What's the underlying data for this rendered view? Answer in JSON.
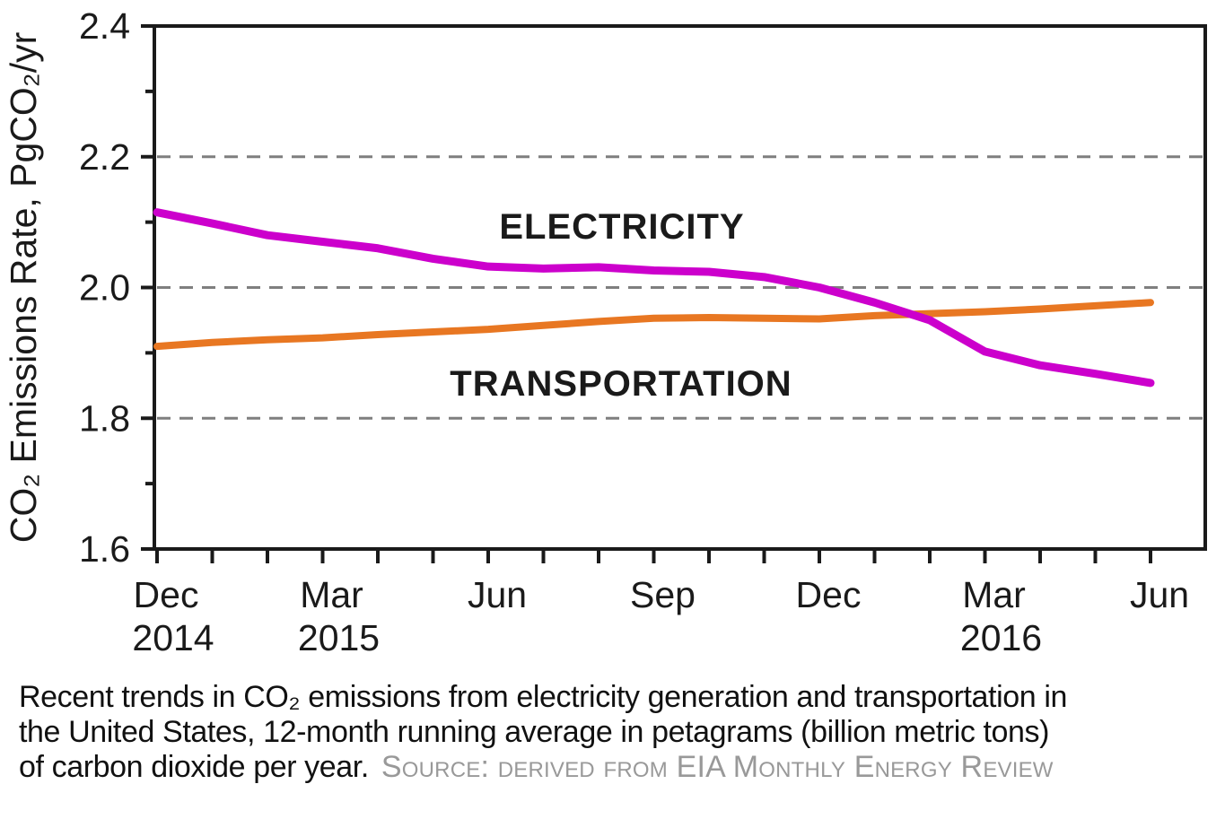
{
  "figure": {
    "caption": {
      "line1": "Recent trends in CO₂ emissions from electricity generation and transportation in",
      "line2": "the United States, 12-month running average in petagrams (billion metric tons)",
      "line3": "of carbon dioxide per year.",
      "source": "Source: derived from EIA Monthly Energy Review"
    },
    "colors": {
      "electricity_line": "#CC00CC",
      "electricity_label": "#B800CC",
      "transportation_line": "#E87722",
      "transportation_label": "#E87722",
      "axis": "#1a1a1a",
      "gridline": "#7f7f7f",
      "source_text": "#999999"
    }
  },
  "chart_data": {
    "type": "line",
    "title": "",
    "xlabel": "",
    "ylabel": "CO₂ Emissions Rate, PgCO₂/yr",
    "ylim": [
      1.6,
      2.4
    ],
    "y_major_ticks": [
      2.4,
      2.2,
      2.0,
      1.8,
      1.6
    ],
    "y_minor_ticks": [
      2.3,
      2.1,
      1.9,
      1.7
    ],
    "gridlines_y": [
      2.2,
      2.0,
      1.8
    ],
    "grid_style": "dashed",
    "legend_position": "inline-labels",
    "x": [
      "Dec 2014",
      "Jan 2015",
      "Feb 2015",
      "Mar 2015",
      "Apr 2015",
      "May 2015",
      "Jun 2015",
      "Jul 2015",
      "Aug 2015",
      "Sep 2015",
      "Oct 2015",
      "Nov 2015",
      "Dec 2015",
      "Jan 2016",
      "Feb 2016",
      "Mar 2016",
      "Apr 2016",
      "May 2016",
      "Jun 2016"
    ],
    "x_tick_labels": [
      {
        "index": 0,
        "month": "Dec",
        "year": "2014"
      },
      {
        "index": 3,
        "month": "Mar",
        "year": "2015"
      },
      {
        "index": 6,
        "month": "Jun",
        "year": ""
      },
      {
        "index": 9,
        "month": "Sep",
        "year": ""
      },
      {
        "index": 12,
        "month": "Dec",
        "year": ""
      },
      {
        "index": 15,
        "month": "Mar",
        "year": "2016"
      },
      {
        "index": 18,
        "month": "Jun",
        "year": ""
      }
    ],
    "series": [
      {
        "name": "ELECTRICITY",
        "values": [
          2.115,
          2.098,
          2.08,
          2.07,
          2.06,
          2.044,
          2.032,
          2.029,
          2.031,
          2.026,
          2.024,
          2.016,
          2.0,
          1.977,
          1.95,
          1.902,
          1.881,
          1.868,
          1.854
        ]
      },
      {
        "name": "TRANSPORTATION",
        "values": [
          1.91,
          1.916,
          1.92,
          1.923,
          1.928,
          1.932,
          1.936,
          1.942,
          1.948,
          1.953,
          1.954,
          1.953,
          1.952,
          1.957,
          1.96,
          1.963,
          1.967,
          1.972,
          1.977
        ]
      }
    ]
  }
}
